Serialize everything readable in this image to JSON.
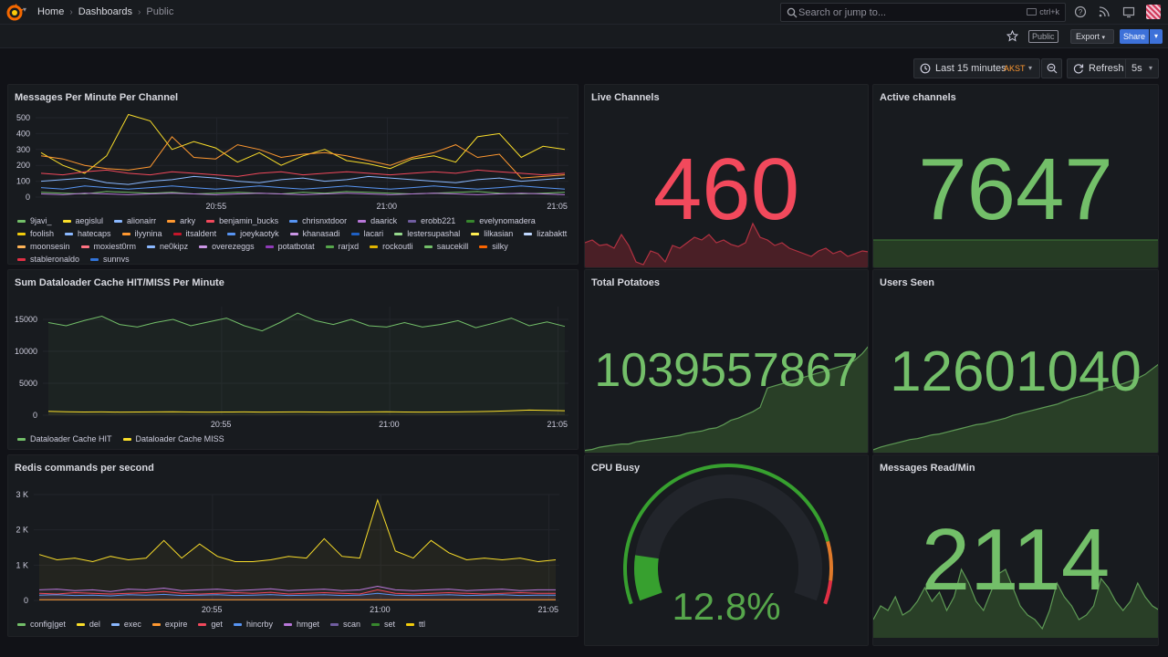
{
  "topbar": {
    "breadcrumbs": [
      "Home",
      "Dashboards",
      "Public"
    ],
    "search_placeholder": "Search or jump to...",
    "search_shortcut": "ctrl+k"
  },
  "subbar": {
    "public_badge": "Public",
    "export_label": "Export",
    "share_label": "Share"
  },
  "time_controls": {
    "range_label": "Last 15 minutes",
    "timezone": "AKST",
    "refresh_label": "Refresh",
    "refresh_interval": "5s"
  },
  "colors": {
    "green": "#73bf69",
    "red": "#f2495c",
    "yellow": "#fade2a",
    "orange": "#ff9830",
    "blue": "#5794f2",
    "purple": "#b877d9"
  },
  "panels": {
    "messages_per_minute": {
      "title": "Messages Per Minute Per Channel",
      "legend": [
        {
          "name": "9javi_",
          "color": "#73bf69"
        },
        {
          "name": "aegislul",
          "color": "#fade2a"
        },
        {
          "name": "alionairr",
          "color": "#8ab8ff"
        },
        {
          "name": "arky",
          "color": "#ff9830"
        },
        {
          "name": "benjamin_bucks",
          "color": "#f2495c"
        },
        {
          "name": "chrisnxtdoor",
          "color": "#5794f2"
        },
        {
          "name": "daarick",
          "color": "#b877d9"
        },
        {
          "name": "erobb221",
          "color": "#705da0"
        },
        {
          "name": "evelynomadera",
          "color": "#37872d"
        },
        {
          "name": "foolish",
          "color": "#f2cc0c"
        },
        {
          "name": "hatecaps",
          "color": "#8ab8ff"
        },
        {
          "name": "ilyynina",
          "color": "#ff9830"
        },
        {
          "name": "itsaldent",
          "color": "#c4162a"
        },
        {
          "name": "joeykaotyk",
          "color": "#5794f2"
        },
        {
          "name": "khanasadi",
          "color": "#ca95e5"
        },
        {
          "name": "lacari",
          "color": "#1f60c4"
        },
        {
          "name": "lestersupashal",
          "color": "#96d98d"
        },
        {
          "name": "lilkasian",
          "color": "#ffee52"
        },
        {
          "name": "lizabaktt",
          "color": "#c0d8ff"
        },
        {
          "name": "moonsesin",
          "color": "#ffb357"
        },
        {
          "name": "moxiest0rm",
          "color": "#ff7383"
        },
        {
          "name": "ne0kipz",
          "color": "#8ab8ff"
        },
        {
          "name": "overezeggs",
          "color": "#ca95e5"
        },
        {
          "name": "potatbotat",
          "color": "#8f3bb8"
        },
        {
          "name": "rarjxd",
          "color": "#56a64b"
        },
        {
          "name": "rockoutli",
          "color": "#e0b400"
        },
        {
          "name": "saucekill",
          "color": "#73bf69"
        },
        {
          "name": "silky",
          "color": "#fa6400"
        },
        {
          "name": "stableronaldo",
          "color": "#e02f44"
        },
        {
          "name": "sunnys",
          "color": "#3274d9"
        }
      ],
      "chart_data": {
        "type": "line",
        "yticks": [
          0,
          100,
          200,
          300,
          400,
          500
        ],
        "ylim": [
          0,
          500
        ],
        "xticks": [
          "20:55",
          "21:00",
          "21:05"
        ],
        "series": [
          {
            "name": "9javi_",
            "color": "#73bf69",
            "values": [
              30,
              25,
              20,
              35,
              30,
              25,
              30,
              20,
              25,
              30,
              25,
              20,
              30,
              25,
              35,
              30,
              25,
              20,
              25,
              30,
              35,
              25,
              20,
              25,
              30
            ]
          },
          {
            "name": "aegislul",
            "color": "#fade2a",
            "values": [
              280,
              200,
              150,
              260,
              520,
              480,
              300,
              350,
              310,
              220,
              280,
              200,
              260,
              300,
              230,
              210,
              180,
              240,
              260,
              220,
              380,
              400,
              250,
              320,
              300
            ]
          },
          {
            "name": "alionairr",
            "color": "#8ab8ff",
            "values": [
              100,
              110,
              120,
              90,
              80,
              100,
              110,
              130,
              120,
              100,
              90,
              110,
              120,
              100,
              110,
              130,
              120,
              110,
              100,
              90,
              110,
              120,
              100,
              110,
              120
            ]
          },
          {
            "name": "arky",
            "color": "#ff9830",
            "values": [
              260,
              240,
              200,
              180,
              170,
              190,
              380,
              250,
              240,
              330,
              300,
              250,
              270,
              280,
              260,
              230,
              200,
              250,
              280,
              330,
              250,
              270,
              120,
              130,
              140
            ]
          },
          {
            "name": "benjamin_bucks",
            "color": "#f2495c",
            "values": [
              150,
              140,
              160,
              170,
              150,
              140,
              160,
              150,
              140,
              130,
              150,
              160,
              140,
              150,
              160,
              150,
              140,
              150,
              160,
              150,
              170,
              160,
              150,
              140,
              150
            ]
          },
          {
            "name": "chrisnxtdoor",
            "color": "#5794f2",
            "values": [
              60,
              50,
              70,
              60,
              50,
              60,
              70,
              60,
              50,
              60,
              70,
              60,
              50,
              60,
              70,
              60,
              50,
              60,
              70,
              60,
              50,
              60,
              70,
              60,
              50
            ]
          },
          {
            "name": "daarick",
            "color": "#b877d9",
            "values": [
              20,
              15,
              25,
              20,
              15,
              20,
              25,
              20,
              15,
              20,
              25,
              20,
              15,
              20,
              25,
              20,
              15,
              20,
              25,
              20,
              15,
              20,
              25,
              20,
              15
            ]
          }
        ]
      }
    },
    "cache": {
      "title": "Sum Dataloader Cache HIT/MISS Per Minute",
      "legend": [
        {
          "name": "Dataloader Cache HIT",
          "color": "#73bf69"
        },
        {
          "name": "Dataloader Cache MISS",
          "color": "#fade2a"
        }
      ],
      "chart_data": {
        "type": "line",
        "yticks": [
          0,
          5000,
          10000,
          15000
        ],
        "ylim": [
          0,
          17000
        ],
        "xticks": [
          "20:55",
          "21:00",
          "21:05"
        ],
        "series": [
          {
            "name": "Dataloader Cache HIT",
            "color": "#73bf69",
            "values": [
              14500,
              14000,
              14800,
              15500,
              14200,
              13800,
              14500,
              15000,
              14000,
              14600,
              15200,
              14000,
              13200,
              14500,
              16000,
              14800,
              14200,
              15000,
              14000,
              13800,
              14500,
              13800,
              14200,
              14800,
              13700,
              14400,
              15200,
              14000,
              14600,
              13900
            ]
          },
          {
            "name": "Dataloader Cache MISS",
            "color": "#fade2a",
            "values": [
              600,
              550,
              500,
              520,
              480,
              500,
              520,
              550,
              500,
              480,
              500,
              520,
              480,
              500,
              520,
              500,
              480,
              500,
              520,
              540,
              500,
              480,
              500,
              520,
              560,
              600,
              700,
              800,
              750,
              700
            ]
          }
        ]
      }
    },
    "redis": {
      "title": "Redis commands per second",
      "legend": [
        {
          "name": "config|get",
          "color": "#73bf69"
        },
        {
          "name": "del",
          "color": "#fade2a"
        },
        {
          "name": "exec",
          "color": "#8ab8ff"
        },
        {
          "name": "expire",
          "color": "#ff9830"
        },
        {
          "name": "get",
          "color": "#f2495c"
        },
        {
          "name": "hincrby",
          "color": "#5794f2"
        },
        {
          "name": "hmget",
          "color": "#b877d9"
        },
        {
          "name": "scan",
          "color": "#705da0"
        },
        {
          "name": "set",
          "color": "#37872d"
        },
        {
          "name": "ttl",
          "color": "#f2cc0c"
        }
      ],
      "chart_data": {
        "type": "line",
        "yticks": [
          "0",
          "1 K",
          "2 K",
          "3 K"
        ],
        "ylim": [
          0,
          3000
        ],
        "xticks": [
          "20:55",
          "21:00",
          "21:05"
        ],
        "series": [
          {
            "name": "ttl",
            "color": "#fade2a",
            "values": [
              1300,
              1150,
              1200,
              1100,
              1250,
              1150,
              1200,
              1700,
              1200,
              1600,
              1250,
              1100,
              1100,
              1150,
              1250,
              1200,
              1750,
              1250,
              1200,
              2850,
              1400,
              1200,
              1700,
              1350,
              1150,
              1200,
              1150,
              1200,
              1100,
              1150
            ]
          },
          {
            "name": "hmget",
            "color": "#b877d9",
            "values": [
              300,
              320,
              280,
              300,
              250,
              320,
              300,
              350,
              280,
              300,
              320,
              280,
              300,
              330,
              280,
              300,
              320,
              280,
              300,
              400,
              300,
              280,
              300,
              320,
              280,
              300,
              320,
              280,
              300,
              300
            ]
          },
          {
            "name": "get",
            "color": "#f2495c",
            "values": [
              200,
              180,
              220,
              200,
              180,
              200,
              220,
              250,
              200,
              180,
              200,
              220,
              200,
              230,
              180,
              200,
              220,
              200,
              180,
              300,
              200,
              180,
              200,
              220,
              200,
              180,
              200,
              220,
              200,
              200
            ]
          },
          {
            "name": "hincrby",
            "color": "#5794f2",
            "values": [
              150,
              160,
              140,
              150,
              130,
              160,
              150,
              170,
              140,
              150,
              160,
              140,
              150,
              165,
              140,
              150,
              160,
              140,
              150,
              200,
              150,
              140,
              150,
              160,
              140,
              150,
              160,
              140,
              150,
              150
            ]
          },
          {
            "name": "expire",
            "color": "#ff9830",
            "values": [
              20,
              20,
              20,
              20,
              20,
              20,
              20,
              20,
              20,
              20,
              20,
              20,
              20,
              20,
              20,
              20,
              20,
              20,
              20,
              20,
              20,
              20,
              20,
              20,
              20,
              20,
              20,
              20,
              20,
              20
            ]
          }
        ]
      }
    },
    "live_channels": {
      "title": "Live Channels",
      "value": "460",
      "sparkline": [
        0.45,
        0.5,
        0.4,
        0.42,
        0.35,
        0.6,
        0.4,
        0.1,
        0.05,
        0.3,
        0.25,
        0.1,
        0.4,
        0.35,
        0.45,
        0.55,
        0.5,
        0.6,
        0.45,
        0.5,
        0.42,
        0.38,
        0.45,
        0.8,
        0.55,
        0.5,
        0.4,
        0.45,
        0.35,
        0.3,
        0.25,
        0.2,
        0.3,
        0.35,
        0.25,
        0.3,
        0.2,
        0.25,
        0.3,
        0.28
      ]
    },
    "active_channels": {
      "title": "Active channels",
      "value": "7647",
      "sparkline": [
        1,
        1,
        1,
        1,
        1,
        1,
        1,
        1,
        1,
        1
      ]
    },
    "total_potatoes": {
      "title": "Total Potatoes",
      "value": "1039557867",
      "sparkline": [
        0.02,
        0.03,
        0.05,
        0.06,
        0.07,
        0.08,
        0.08,
        0.1,
        0.11,
        0.12,
        0.13,
        0.14,
        0.15,
        0.16,
        0.18,
        0.19,
        0.2,
        0.22,
        0.23,
        0.26,
        0.3,
        0.32,
        0.35,
        0.38,
        0.42,
        0.6,
        0.62,
        0.64,
        0.66,
        0.68,
        0.7,
        0.72,
        0.74,
        0.76,
        0.78,
        0.8,
        0.82,
        0.86,
        0.92,
        1.0
      ]
    },
    "users_seen": {
      "title": "Users Seen",
      "value": "12601040",
      "sparkline": [
        0.03,
        0.06,
        0.08,
        0.1,
        0.12,
        0.14,
        0.15,
        0.17,
        0.19,
        0.2,
        0.22,
        0.24,
        0.26,
        0.28,
        0.3,
        0.31,
        0.33,
        0.35,
        0.37,
        0.4,
        0.42,
        0.44,
        0.46,
        0.48,
        0.5,
        0.52,
        0.55,
        0.58,
        0.6,
        0.62,
        0.65,
        0.68,
        0.7,
        0.72,
        0.74,
        0.77,
        0.8,
        0.84,
        0.9,
        0.96
      ]
    },
    "cpu_busy": {
      "title": "CPU Busy",
      "value": "12.8%",
      "percent": 12.8
    },
    "messages_read": {
      "title": "Messages Read/Min",
      "value": "2114",
      "sparkline": [
        0.2,
        0.35,
        0.3,
        0.45,
        0.25,
        0.3,
        0.4,
        0.55,
        0.4,
        0.5,
        0.3,
        0.45,
        0.75,
        0.6,
        0.4,
        0.3,
        0.5,
        0.7,
        0.75,
        0.55,
        0.35,
        0.25,
        0.2,
        0.1,
        0.3,
        0.6,
        0.45,
        0.35,
        0.2,
        0.25,
        0.35,
        0.65,
        0.55,
        0.4,
        0.3,
        0.4,
        0.6,
        0.45,
        0.35,
        0.3
      ]
    }
  }
}
